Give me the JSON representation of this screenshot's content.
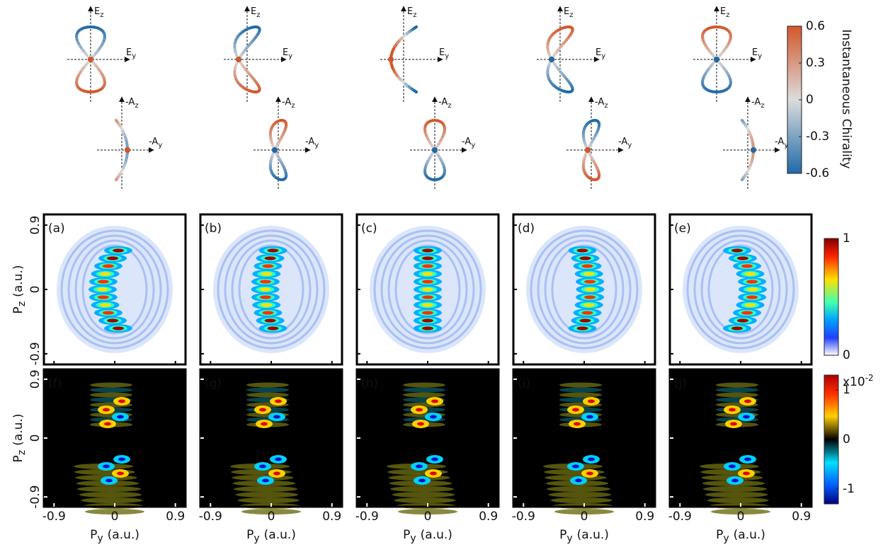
{
  "field_labels": [
    {
      "main": "E",
      "sub": "z"
    },
    {
      "main": "E",
      "sub": "y"
    },
    {
      "main": "-A",
      "sub": "z"
    },
    {
      "main": "-A",
      "sub": "y"
    }
  ],
  "chirality_colorbar": {
    "label": "Instantaneous Chirality",
    "lim": [
      -0.6,
      0.6
    ],
    "ticks": [
      0.6,
      0.3,
      0,
      -0.3,
      -0.6
    ]
  },
  "panels": [
    "(a)",
    "(b)",
    "(c)",
    "(d)",
    "(e)",
    "(f)",
    "(g)",
    "(h)",
    "(i)",
    "(j)"
  ],
  "momentum_axes": {
    "x_label": {
      "main": "P",
      "sub": "y",
      "unit": "(a.u.)"
    },
    "y_label": {
      "main": "P",
      "sub": "z",
      "unit": "(a.u.)"
    },
    "xlim": [
      -1.05,
      1.05
    ],
    "xticks": [
      -0.9,
      0,
      0.9
    ],
    "ylim": [
      -1.05,
      1.05
    ],
    "yticks": [
      0.9,
      0,
      -0.9
    ]
  },
  "density_colorbar": {
    "lim": [
      0,
      1
    ],
    "ticks": [
      1,
      0
    ]
  },
  "difference_colorbar": {
    "lim": [
      -1.3,
      1.3
    ],
    "ticks": [
      1,
      0,
      -1
    ],
    "scale": {
      "main": "x10",
      "sup": "-2"
    }
  }
}
